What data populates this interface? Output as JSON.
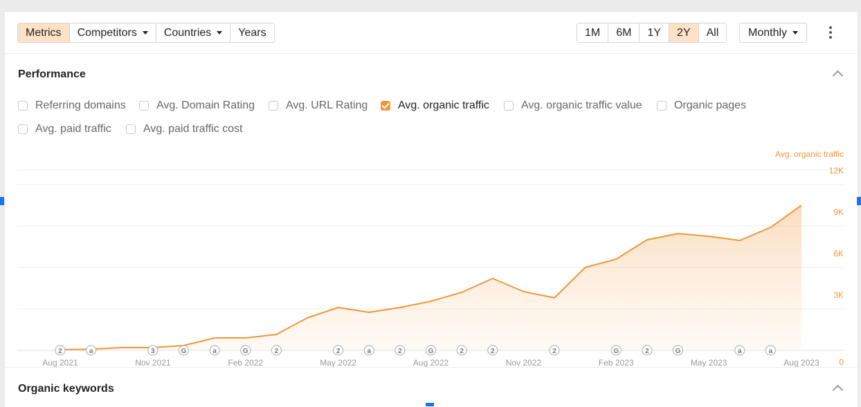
{
  "toolbar": {
    "tabs": [
      {
        "label": "Metrics",
        "active": true,
        "dropdown": false
      },
      {
        "label": "Competitors",
        "active": false,
        "dropdown": true
      },
      {
        "label": "Countries",
        "active": false,
        "dropdown": true
      },
      {
        "label": "Years",
        "active": false,
        "dropdown": false
      }
    ],
    "ranges": [
      {
        "label": "1M",
        "active": false
      },
      {
        "label": "6M",
        "active": false
      },
      {
        "label": "1Y",
        "active": false
      },
      {
        "label": "2Y",
        "active": true
      },
      {
        "label": "All",
        "active": false
      }
    ],
    "interval": "Monthly",
    "more_icon": "kebab-menu-icon"
  },
  "performance": {
    "title": "Performance",
    "collapse_icon": "chevron-up-icon",
    "metrics": [
      {
        "label": "Referring domains",
        "checked": false
      },
      {
        "label": "Avg. Domain Rating",
        "checked": false
      },
      {
        "label": "Avg. URL Rating",
        "checked": false
      },
      {
        "label": "Avg. organic traffic",
        "checked": true
      },
      {
        "label": "Avg. organic traffic value",
        "checked": false
      },
      {
        "label": "Organic pages",
        "checked": false
      },
      {
        "label": "Avg. paid traffic",
        "checked": false
      },
      {
        "label": "Avg. paid traffic cost",
        "checked": false
      }
    ]
  },
  "organic_keywords": {
    "title": "Organic keywords",
    "collapse_icon": "chevron-up-icon"
  },
  "colors": {
    "accent": "#f0963a",
    "active_bg": "#fde2c7"
  },
  "chart_data": {
    "type": "area",
    "series": [
      {
        "name": "Avg. organic traffic",
        "x": [
          "2021-08",
          "2021-09",
          "2021-10",
          "2021-11",
          "2021-12",
          "2022-01",
          "2022-02",
          "2022-03",
          "2022-04",
          "2022-05",
          "2022-06",
          "2022-07",
          "2022-08",
          "2022-09",
          "2022-10",
          "2022-11",
          "2022-12",
          "2023-01",
          "2023-02",
          "2023-03",
          "2023-04",
          "2023-05",
          "2023-06",
          "2023-07",
          "2023-08"
        ],
        "values": [
          50,
          80,
          200,
          200,
          350,
          900,
          900,
          1150,
          2350,
          3100,
          2750,
          3100,
          3550,
          4200,
          5200,
          4250,
          3800,
          6000,
          6600,
          8000,
          8450,
          8250,
          7950,
          8900,
          10500
        ]
      }
    ],
    "x_tick_labels": [
      "Aug 2021",
      "Nov 2021",
      "Feb 2022",
      "May 2022",
      "Aug 2022",
      "Nov 2022",
      "Feb 2023",
      "May 2023",
      "Aug 2023"
    ],
    "y_ticks": [
      "0",
      "3K",
      "6K",
      "9K",
      "12K"
    ],
    "ylim": [
      0,
      12000
    ],
    "ylabel": "Avg. organic traffic",
    "y_axis_side": "right",
    "grid": true,
    "annotations": [
      {
        "x": "2021-08",
        "label": "2"
      },
      {
        "x": "2021-09",
        "label": "a"
      },
      {
        "x": "2021-11",
        "label": "3"
      },
      {
        "x": "2021-12",
        "label": "G"
      },
      {
        "x": "2022-01",
        "label": "a"
      },
      {
        "x": "2022-02",
        "label": "G"
      },
      {
        "x": "2022-03",
        "label": "2"
      },
      {
        "x": "2022-05",
        "label": "2"
      },
      {
        "x": "2022-06",
        "label": "a"
      },
      {
        "x": "2022-07",
        "label": "2"
      },
      {
        "x": "2022-08",
        "label": "G"
      },
      {
        "x": "2022-09",
        "label": "2"
      },
      {
        "x": "2022-10",
        "label": "2"
      },
      {
        "x": "2022-12",
        "label": "2"
      },
      {
        "x": "2023-02",
        "label": "G"
      },
      {
        "x": "2023-03",
        "label": "2"
      },
      {
        "x": "2023-04",
        "label": "G"
      },
      {
        "x": "2023-06",
        "label": "a"
      },
      {
        "x": "2023-07",
        "label": "a"
      }
    ]
  }
}
